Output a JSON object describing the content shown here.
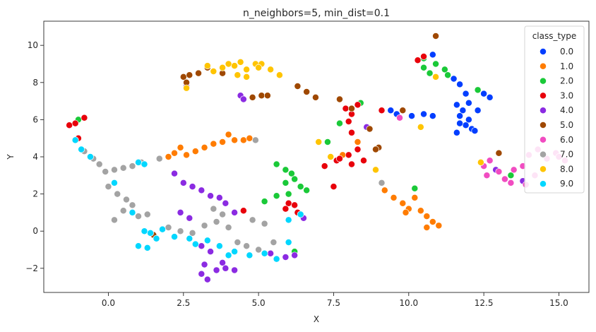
{
  "chart_data": {
    "type": "scatter",
    "title": "n_neighbors=5, min_dist=0.1",
    "xlabel": "X",
    "ylabel": "Y",
    "xlim": [
      -2.15,
      16.0
    ],
    "ylim": [
      -3.3,
      11.3
    ],
    "xticks": [
      0.0,
      2.5,
      5.0,
      7.5,
      10.0,
      12.5,
      15.0
    ],
    "xtick_labels": [
      "0.0",
      "2.5",
      "5.0",
      "7.5",
      "10.0",
      "12.5",
      "15.0"
    ],
    "yticks": [
      -2,
      0,
      2,
      4,
      6,
      8,
      10
    ],
    "ytick_labels": [
      "−2",
      "0",
      "2",
      "4",
      "6",
      "8",
      "10"
    ],
    "grid": false,
    "legend": {
      "title": "class_type",
      "placement": "top-right"
    },
    "series": [
      {
        "name": "0.0",
        "color": "#023eff",
        "points": [
          [
            10.8,
            9.5
          ],
          [
            11.5,
            8.2
          ],
          [
            11.7,
            7.9
          ],
          [
            11.6,
            6.8
          ],
          [
            11.8,
            6.5
          ],
          [
            12.0,
            6.9
          ],
          [
            11.7,
            6.2
          ],
          [
            12.0,
            6.0
          ],
          [
            11.9,
            5.7
          ],
          [
            12.1,
            5.5
          ],
          [
            11.6,
            5.3
          ],
          [
            12.2,
            5.4
          ],
          [
            12.3,
            6.5
          ],
          [
            12.5,
            7.4
          ],
          [
            12.7,
            7.2
          ],
          [
            11.9,
            7.4
          ],
          [
            9.4,
            6.5
          ],
          [
            9.6,
            6.3
          ],
          [
            10.1,
            6.2
          ],
          [
            10.5,
            6.3
          ],
          [
            10.8,
            6.2
          ],
          [
            11.7,
            5.8
          ]
        ]
      },
      {
        "name": "1.0",
        "color": "#ff7c00",
        "points": [
          [
            2.0,
            4.0
          ],
          [
            2.2,
            4.2
          ],
          [
            2.4,
            4.5
          ],
          [
            2.6,
            4.1
          ],
          [
            2.9,
            4.3
          ],
          [
            3.2,
            4.5
          ],
          [
            3.5,
            4.7
          ],
          [
            3.8,
            4.8
          ],
          [
            4.0,
            5.2
          ],
          [
            4.2,
            4.9
          ],
          [
            4.5,
            4.9
          ],
          [
            4.7,
            5.0
          ],
          [
            7.8,
            4.1
          ],
          [
            8.3,
            4.8
          ],
          [
            9.2,
            2.2
          ],
          [
            9.5,
            1.8
          ],
          [
            9.8,
            1.5
          ],
          [
            10.0,
            1.2
          ],
          [
            10.2,
            1.8
          ],
          [
            9.9,
            1.0
          ],
          [
            10.4,
            1.1
          ],
          [
            10.6,
            0.8
          ],
          [
            10.8,
            0.5
          ],
          [
            11.0,
            0.3
          ],
          [
            10.6,
            0.2
          ]
        ]
      },
      {
        "name": "2.0",
        "color": "#1ac938",
        "points": [
          [
            -1.0,
            6.0
          ],
          [
            5.6,
            3.6
          ],
          [
            5.9,
            3.3
          ],
          [
            6.1,
            3.1
          ],
          [
            6.2,
            2.8
          ],
          [
            5.9,
            2.6
          ],
          [
            6.4,
            2.4
          ],
          [
            6.0,
            2.0
          ],
          [
            5.6,
            1.9
          ],
          [
            5.2,
            1.6
          ],
          [
            6.6,
            2.2
          ],
          [
            7.3,
            4.8
          ],
          [
            7.7,
            5.8
          ],
          [
            8.4,
            6.9
          ],
          [
            10.5,
            9.3
          ],
          [
            10.9,
            9.0
          ],
          [
            11.2,
            8.7
          ],
          [
            11.3,
            8.4
          ],
          [
            10.7,
            8.5
          ],
          [
            10.5,
            8.8
          ],
          [
            10.2,
            2.3
          ],
          [
            12.3,
            7.6
          ],
          [
            13.4,
            3.0
          ],
          [
            6.2,
            -1.1
          ]
        ]
      },
      {
        "name": "3.0",
        "color": "#e8000b",
        "points": [
          [
            -1.3,
            5.7
          ],
          [
            -1.1,
            5.8
          ],
          [
            -0.8,
            6.1
          ],
          [
            -1.0,
            5.0
          ],
          [
            4.5,
            1.1
          ],
          [
            6.0,
            1.5
          ],
          [
            6.2,
            1.4
          ],
          [
            6.3,
            1.0
          ],
          [
            5.9,
            1.2
          ],
          [
            7.5,
            2.4
          ],
          [
            7.6,
            3.8
          ],
          [
            7.9,
            6.6
          ],
          [
            8.1,
            6.3
          ],
          [
            8.3,
            6.8
          ],
          [
            8.0,
            5.9
          ],
          [
            8.1,
            5.3
          ],
          [
            8.3,
            4.4
          ],
          [
            8.0,
            4.1
          ],
          [
            8.5,
            3.8
          ],
          [
            7.7,
            3.9
          ],
          [
            8.1,
            3.6
          ],
          [
            7.2,
            3.5
          ],
          [
            9.1,
            6.5
          ],
          [
            10.3,
            9.2
          ],
          [
            10.5,
            9.4
          ]
        ]
      },
      {
        "name": "4.0",
        "color": "#8b2be2",
        "points": [
          [
            2.2,
            3.1
          ],
          [
            2.5,
            2.6
          ],
          [
            2.8,
            2.4
          ],
          [
            3.1,
            2.2
          ],
          [
            3.4,
            1.9
          ],
          [
            3.7,
            1.8
          ],
          [
            3.9,
            1.5
          ],
          [
            4.2,
            1.0
          ],
          [
            2.4,
            1.0
          ],
          [
            2.7,
            0.7
          ],
          [
            3.1,
            -0.8
          ],
          [
            3.4,
            -1.1
          ],
          [
            3.2,
            -1.8
          ],
          [
            3.6,
            -2.1
          ],
          [
            3.8,
            -1.7
          ],
          [
            3.3,
            -2.6
          ],
          [
            3.1,
            -2.3
          ],
          [
            3.9,
            -2.0
          ],
          [
            4.2,
            -2.1
          ],
          [
            5.4,
            -1.2
          ],
          [
            5.9,
            -1.4
          ],
          [
            6.2,
            -1.3
          ],
          [
            6.5,
            0.7
          ],
          [
            4.4,
            7.3
          ],
          [
            4.5,
            7.1
          ],
          [
            2.6,
            7.8
          ],
          [
            8.6,
            5.6
          ],
          [
            13.8,
            2.7
          ],
          [
            12.9,
            3.3
          ]
        ]
      },
      {
        "name": "5.0",
        "color": "#9f4800",
        "points": [
          [
            2.5,
            8.3
          ],
          [
            2.7,
            8.4
          ],
          [
            3.0,
            8.5
          ],
          [
            3.3,
            8.8
          ],
          [
            2.6,
            8.0
          ],
          [
            3.8,
            8.5
          ],
          [
            5.1,
            7.3
          ],
          [
            5.3,
            7.3
          ],
          [
            4.8,
            7.2
          ],
          [
            6.3,
            7.8
          ],
          [
            6.6,
            7.5
          ],
          [
            6.9,
            7.2
          ],
          [
            7.7,
            7.1
          ],
          [
            8.1,
            6.6
          ],
          [
            8.7,
            5.5
          ],
          [
            9.0,
            4.5
          ],
          [
            8.9,
            4.4
          ],
          [
            10.9,
            10.5
          ],
          [
            9.8,
            6.5
          ],
          [
            13.0,
            4.2
          ],
          [
            1.5,
            -0.2
          ]
        ]
      },
      {
        "name": "6.0",
        "color": "#f14cc1",
        "points": [
          [
            12.5,
            3.5
          ],
          [
            12.7,
            3.8
          ],
          [
            13.0,
            3.2
          ],
          [
            13.2,
            2.8
          ],
          [
            13.5,
            3.3
          ],
          [
            13.8,
            3.5
          ],
          [
            14.0,
            4.1
          ],
          [
            14.3,
            4.4
          ],
          [
            14.6,
            3.9
          ],
          [
            14.9,
            4.2
          ],
          [
            15.2,
            3.8
          ],
          [
            13.4,
            2.6
          ],
          [
            13.9,
            2.5
          ],
          [
            14.2,
            3.0
          ],
          [
            12.6,
            3.0
          ],
          [
            15.0,
            4.0
          ],
          [
            9.7,
            6.1
          ]
        ]
      },
      {
        "name": "7.0",
        "color": "#a3a3a3",
        "points": [
          [
            -0.8,
            4.3
          ],
          [
            -0.5,
            3.9
          ],
          [
            -0.3,
            3.6
          ],
          [
            -0.1,
            3.2
          ],
          [
            0.2,
            3.3
          ],
          [
            0.5,
            3.4
          ],
          [
            0.8,
            3.5
          ],
          [
            1.1,
            3.7
          ],
          [
            1.7,
            3.9
          ],
          [
            0.0,
            2.4
          ],
          [
            0.3,
            2.0
          ],
          [
            0.6,
            1.7
          ],
          [
            0.8,
            1.4
          ],
          [
            0.5,
            1.1
          ],
          [
            1.0,
            0.8
          ],
          [
            1.3,
            0.9
          ],
          [
            0.2,
            0.6
          ],
          [
            2.0,
            0.2
          ],
          [
            2.4,
            0.0
          ],
          [
            2.8,
            -0.1
          ],
          [
            3.2,
            0.3
          ],
          [
            3.6,
            0.5
          ],
          [
            4.0,
            0.2
          ],
          [
            3.5,
            1.2
          ],
          [
            3.8,
            0.9
          ],
          [
            4.8,
            0.6
          ],
          [
            5.2,
            0.4
          ],
          [
            4.3,
            -0.6
          ],
          [
            4.6,
            -0.8
          ],
          [
            5.0,
            -1.0
          ],
          [
            5.5,
            -0.6
          ],
          [
            4.9,
            4.9
          ],
          [
            9.1,
            2.6
          ]
        ]
      },
      {
        "name": "8.0",
        "color": "#ffc400",
        "points": [
          [
            3.5,
            8.6
          ],
          [
            3.8,
            8.8
          ],
          [
            4.0,
            9.0
          ],
          [
            4.2,
            8.9
          ],
          [
            4.4,
            9.1
          ],
          [
            4.6,
            8.7
          ],
          [
            4.9,
            9.0
          ],
          [
            5.1,
            9.0
          ],
          [
            4.3,
            8.4
          ],
          [
            4.6,
            8.3
          ],
          [
            5.4,
            8.7
          ],
          [
            5.7,
            8.4
          ],
          [
            7.0,
            4.8
          ],
          [
            7.4,
            4.0
          ],
          [
            8.9,
            3.3
          ],
          [
            10.4,
            5.6
          ],
          [
            10.9,
            8.3
          ],
          [
            12.4,
            3.7
          ],
          [
            3.3,
            8.9
          ],
          [
            2.6,
            7.7
          ],
          [
            5.0,
            8.8
          ]
        ]
      },
      {
        "name": "9.0",
        "color": "#00d7ff",
        "points": [
          [
            -1.1,
            4.9
          ],
          [
            -0.9,
            4.4
          ],
          [
            -0.6,
            4.0
          ],
          [
            0.2,
            2.6
          ],
          [
            0.8,
            1.0
          ],
          [
            1.0,
            3.7
          ],
          [
            1.2,
            3.6
          ],
          [
            1.2,
            0.0
          ],
          [
            1.4,
            -0.1
          ],
          [
            1.0,
            -0.8
          ],
          [
            1.3,
            -0.9
          ],
          [
            1.8,
            0.1
          ],
          [
            2.2,
            -0.3
          ],
          [
            2.7,
            -0.4
          ],
          [
            3.3,
            -0.5
          ],
          [
            3.7,
            -0.8
          ],
          [
            4.2,
            -1.1
          ],
          [
            4.7,
            -1.3
          ],
          [
            5.2,
            -1.2
          ],
          [
            5.6,
            -1.5
          ],
          [
            6.0,
            -0.6
          ],
          [
            6.4,
            0.9
          ],
          [
            6.0,
            0.6
          ],
          [
            1.6,
            -0.4
          ],
          [
            2.9,
            -0.7
          ],
          [
            4.0,
            -1.3
          ]
        ]
      }
    ]
  }
}
